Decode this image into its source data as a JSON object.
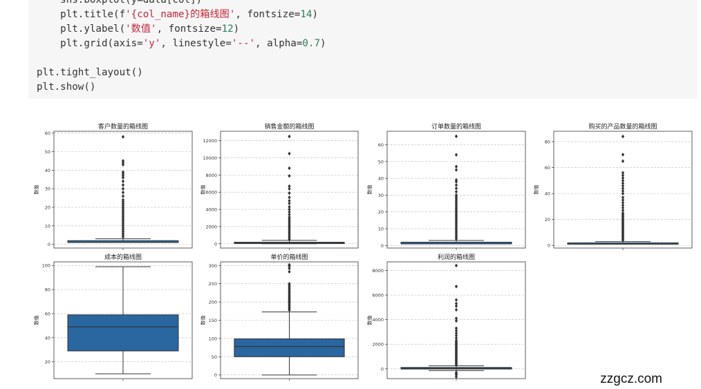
{
  "code": {
    "lines": [
      [
        {
          "t": "    sns.boxplot(y=data[col])"
        }
      ],
      [
        {
          "t": "    plt.title(f"
        },
        {
          "t": "'{col_name}的箱线图'",
          "c": "str"
        },
        {
          "t": ", fontsize="
        },
        {
          "t": "14",
          "c": "num"
        },
        {
          "t": ")"
        }
      ],
      [
        {
          "t": "    plt.ylabel("
        },
        {
          "t": "'数值'",
          "c": "str"
        },
        {
          "t": ", fontsize="
        },
        {
          "t": "12",
          "c": "num"
        },
        {
          "t": ")"
        }
      ],
      [
        {
          "t": "    plt.grid(axis="
        },
        {
          "t": "'y'",
          "c": "str"
        },
        {
          "t": ", linestyle="
        },
        {
          "t": "'--'",
          "c": "str"
        },
        {
          "t": ", alpha="
        },
        {
          "t": "0.7",
          "c": "num"
        },
        {
          "t": ")"
        }
      ],
      [
        {
          "t": ""
        }
      ],
      [
        {
          "t": "plt.tight_layout()"
        }
      ],
      [
        {
          "t": "plt.show()"
        }
      ]
    ]
  },
  "watermark": "zzgcz.com",
  "colors": {
    "box": "#2a66a0",
    "median": "#333333",
    "outlier": "#333333",
    "grid": "#bbbbbb"
  },
  "chart_data": [
    {
      "type": "box",
      "title": "客户数量的箱线图",
      "ylabel": "数值",
      "ylim": [
        -2,
        61
      ],
      "yticks": [
        0,
        10,
        20,
        30,
        40,
        50,
        60
      ],
      "q1": 1,
      "median": 1,
      "q3": 2,
      "whisker_low": 1,
      "whisker_high": 3,
      "outliers": [
        4,
        5,
        6,
        7,
        8,
        9,
        10,
        11,
        12,
        13,
        14,
        15,
        16,
        17,
        18,
        19,
        20,
        21,
        22,
        23,
        24,
        26,
        28,
        30,
        32,
        34,
        36,
        37,
        38,
        39,
        43,
        44,
        45,
        58
      ]
    },
    {
      "type": "box",
      "title": "销售金额的箱线图",
      "ylabel": "数值",
      "ylim": [
        -500,
        13100
      ],
      "yticks": [
        0,
        2000,
        4000,
        6000,
        8000,
        10000,
        12000
      ],
      "q1": 30,
      "median": 80,
      "q3": 180,
      "whisker_low": 0,
      "whisker_high": 400,
      "outliers": [
        500,
        700,
        900,
        1100,
        1300,
        1500,
        1700,
        1900,
        2100,
        2300,
        2500,
        2700,
        2900,
        3100,
        3400,
        3700,
        4000,
        4300,
        4700,
        5000,
        5400,
        5900,
        6400,
        6700,
        7900,
        8800,
        10500,
        12500
      ]
    },
    {
      "type": "box",
      "title": "订单数量的箱线图",
      "ylabel": "数值",
      "ylim": [
        -1.5,
        68
      ],
      "yticks": [
        0,
        10,
        20,
        30,
        40,
        50,
        60
      ],
      "q1": 1,
      "median": 1,
      "q3": 2,
      "whisker_low": 1,
      "whisker_high": 3,
      "outliers": [
        4,
        5,
        6,
        7,
        8,
        9,
        10,
        11,
        12,
        13,
        14,
        15,
        16,
        17,
        18,
        19,
        20,
        21,
        22,
        23,
        24,
        25,
        26,
        27,
        28,
        29,
        30,
        32,
        34,
        36,
        38,
        39,
        45,
        47,
        54,
        65
      ]
    },
    {
      "type": "box",
      "title": "购买的产品数量的箱线图",
      "ylabel": "数值",
      "ylim": [
        -2,
        88
      ],
      "yticks": [
        0,
        20,
        40,
        60,
        80
      ],
      "q1": 1,
      "median": 1,
      "q3": 2,
      "whisker_low": 1,
      "whisker_high": 3,
      "outliers": [
        4,
        5,
        6,
        7,
        8,
        9,
        10,
        11,
        12,
        13,
        14,
        15,
        16,
        17,
        18,
        19,
        20,
        21,
        22,
        23,
        24,
        25,
        27,
        29,
        31,
        33,
        35,
        37,
        40,
        42,
        44,
        46,
        48,
        50,
        52,
        54,
        56,
        65,
        70,
        84
      ]
    },
    {
      "type": "box",
      "title": "成本的箱线图",
      "ylabel": "数值",
      "ylim": [
        6,
        103
      ],
      "yticks": [
        20,
        40,
        60,
        80,
        100
      ],
      "q1": 29,
      "median": 49,
      "q3": 59,
      "whisker_low": 10,
      "whisker_high": 99,
      "outliers": []
    },
    {
      "type": "box",
      "title": "单价的箱线图",
      "ylabel": "数值",
      "ylim": [
        -10,
        310
      ],
      "yticks": [
        0,
        50,
        100,
        150,
        200,
        250,
        300
      ],
      "q1": 50,
      "median": 78,
      "q3": 99,
      "whisker_low": 0,
      "whisker_high": 173,
      "outliers": [
        178,
        182,
        186,
        190,
        194,
        198,
        202,
        206,
        210,
        214,
        218,
        222,
        226,
        230,
        234,
        238,
        242,
        246,
        250,
        283,
        292,
        298,
        302
      ]
    },
    {
      "type": "box",
      "title": "利润的箱线图",
      "ylabel": "数值",
      "ylim": [
        -800,
        8700
      ],
      "yticks": [
        0,
        2000,
        4000,
        6000,
        8000
      ],
      "q1": -20,
      "median": 30,
      "q3": 110,
      "whisker_low": -150,
      "whisker_high": 250,
      "outliers": [
        -650,
        -500,
        -400,
        -300,
        300,
        400,
        500,
        600,
        700,
        800,
        900,
        1000,
        1100,
        1200,
        1300,
        1400,
        1500,
        1600,
        1700,
        1800,
        1900,
        2000,
        2100,
        2200,
        2300,
        2500,
        2700,
        2900,
        3100,
        3300,
        3900,
        4100,
        4800,
        5100,
        5300,
        5600,
        6700,
        8400
      ]
    }
  ]
}
